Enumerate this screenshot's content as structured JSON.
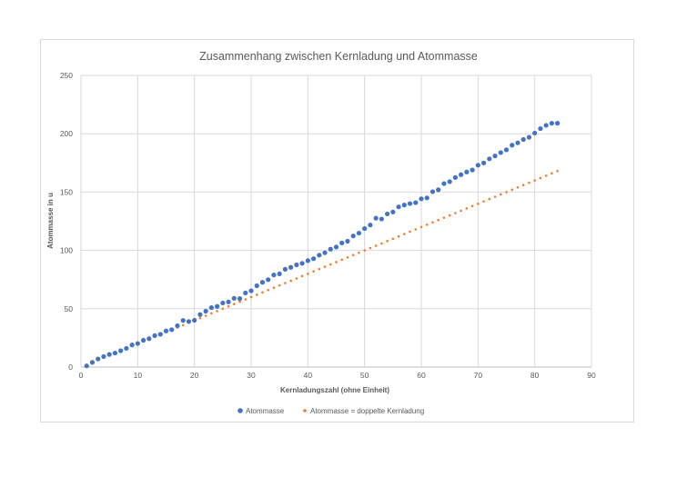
{
  "chart_data": {
    "type": "scatter",
    "title": "Zusammenhang zwischen Kernladung und Atommasse",
    "xlabel": "Kernladungszahl (ohne Einheit)",
    "ylabel": "Atommasse in u",
    "xlim": [
      0,
      90
    ],
    "ylim": [
      0,
      250
    ],
    "xticks": [
      0,
      10,
      20,
      30,
      40,
      50,
      60,
      70,
      80,
      90
    ],
    "yticks": [
      0,
      50,
      100,
      150,
      200,
      250
    ],
    "grid": true,
    "legend_position": "bottom",
    "series": [
      {
        "name": "Atommasse",
        "color": "#4472c4",
        "marker": "circle",
        "x": [
          1,
          2,
          3,
          4,
          5,
          6,
          7,
          8,
          9,
          10,
          11,
          12,
          13,
          14,
          15,
          16,
          17,
          18,
          19,
          20,
          21,
          22,
          23,
          24,
          25,
          26,
          27,
          28,
          29,
          30,
          31,
          32,
          33,
          34,
          35,
          36,
          37,
          38,
          39,
          40,
          41,
          42,
          43,
          44,
          45,
          46,
          47,
          48,
          49,
          50,
          51,
          52,
          53,
          54,
          55,
          56,
          57,
          58,
          59,
          60,
          61,
          62,
          63,
          64,
          65,
          66,
          67,
          68,
          69,
          70,
          71,
          72,
          73,
          74,
          75,
          76,
          77,
          78,
          79,
          80,
          81,
          82,
          83,
          84
        ],
        "y": [
          1.01,
          4,
          6.94,
          9.01,
          10.81,
          12.01,
          14.01,
          16,
          19,
          20.18,
          22.99,
          24.31,
          26.98,
          28.09,
          30.97,
          32.07,
          35.45,
          39.95,
          39.1,
          40.08,
          44.96,
          47.87,
          50.94,
          52,
          54.94,
          55.85,
          58.93,
          58.69,
          63.55,
          65.38,
          69.72,
          72.63,
          74.92,
          78.97,
          79.9,
          83.8,
          85.47,
          87.62,
          88.91,
          91.22,
          92.91,
          95.95,
          98,
          101.07,
          102.91,
          106.42,
          107.87,
          112.41,
          114.82,
          118.71,
          121.76,
          127.6,
          126.9,
          131.29,
          132.91,
          137.33,
          138.91,
          140.12,
          140.91,
          144.24,
          145,
          150.36,
          151.96,
          157.25,
          158.93,
          162.5,
          164.93,
          167.26,
          168.93,
          173.05,
          174.97,
          178.49,
          180.95,
          183.84,
          186.21,
          190.23,
          192.22,
          195.08,
          196.97,
          200.59,
          204.38,
          207.2,
          208.98,
          209
        ]
      },
      {
        "name": "Atommasse = doppelte Kernladung",
        "color": "#ed7d31",
        "marker": "dot",
        "x": [
          1,
          2,
          3,
          4,
          5,
          6,
          7,
          8,
          9,
          10,
          11,
          12,
          13,
          14,
          15,
          16,
          17,
          18,
          19,
          20,
          21,
          22,
          23,
          24,
          25,
          26,
          27,
          28,
          29,
          30,
          31,
          32,
          33,
          34,
          35,
          36,
          37,
          38,
          39,
          40,
          41,
          42,
          43,
          44,
          45,
          46,
          47,
          48,
          49,
          50,
          51,
          52,
          53,
          54,
          55,
          56,
          57,
          58,
          59,
          60,
          61,
          62,
          63,
          64,
          65,
          66,
          67,
          68,
          69,
          70,
          71,
          72,
          73,
          74,
          75,
          76,
          77,
          78,
          79,
          80,
          81,
          82,
          83,
          84
        ],
        "y": [
          2,
          4,
          6,
          8,
          10,
          12,
          14,
          16,
          18,
          20,
          22,
          24,
          26,
          28,
          30,
          32,
          34,
          36,
          38,
          40,
          42,
          44,
          46,
          48,
          50,
          52,
          54,
          56,
          58,
          60,
          62,
          64,
          66,
          68,
          70,
          72,
          74,
          76,
          78,
          80,
          82,
          84,
          86,
          88,
          90,
          92,
          94,
          96,
          98,
          100,
          102,
          104,
          106,
          108,
          110,
          112,
          114,
          116,
          118,
          120,
          122,
          124,
          126,
          128,
          130,
          132,
          134,
          136,
          138,
          140,
          142,
          144,
          146,
          148,
          150,
          152,
          154,
          156,
          158,
          160,
          162,
          164,
          166,
          168
        ]
      }
    ]
  }
}
